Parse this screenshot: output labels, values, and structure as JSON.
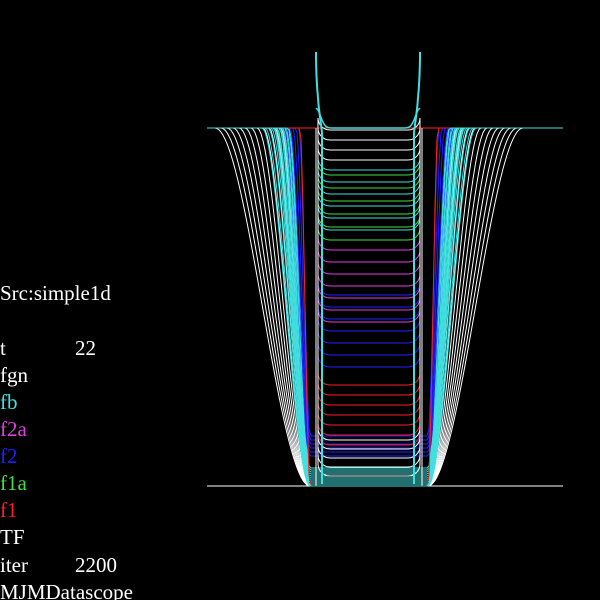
{
  "source": "Src:simple1d",
  "params": [
    {
      "label": "t",
      "value": "22",
      "color": "#ffffff"
    },
    {
      "label": "fgn",
      "value": "",
      "color": "#ffffff"
    },
    {
      "label": "fb",
      "value": "",
      "color": "#40e0e0"
    },
    {
      "label": "f2a",
      "value": "",
      "color": "#e040e0"
    },
    {
      "label": "f2",
      "value": "",
      "color": "#2020ff"
    },
    {
      "label": "f1a",
      "value": "",
      "color": "#40e040"
    },
    {
      "label": "f1",
      "value": "",
      "color": "#ff2020"
    },
    {
      "label": "TF",
      "value": "",
      "color": "#ffffff"
    },
    {
      "label": "iter",
      "value": "2200",
      "color": "#ffffff"
    }
  ],
  "footer": "MJMDatascope",
  "colors": {
    "background": "#000000",
    "fb": "#40e0e0",
    "f2a": "#e040e0",
    "f2": "#2020ff",
    "f1a": "#40e040",
    "f1": "#ff2020",
    "white": "#ffffff"
  }
}
